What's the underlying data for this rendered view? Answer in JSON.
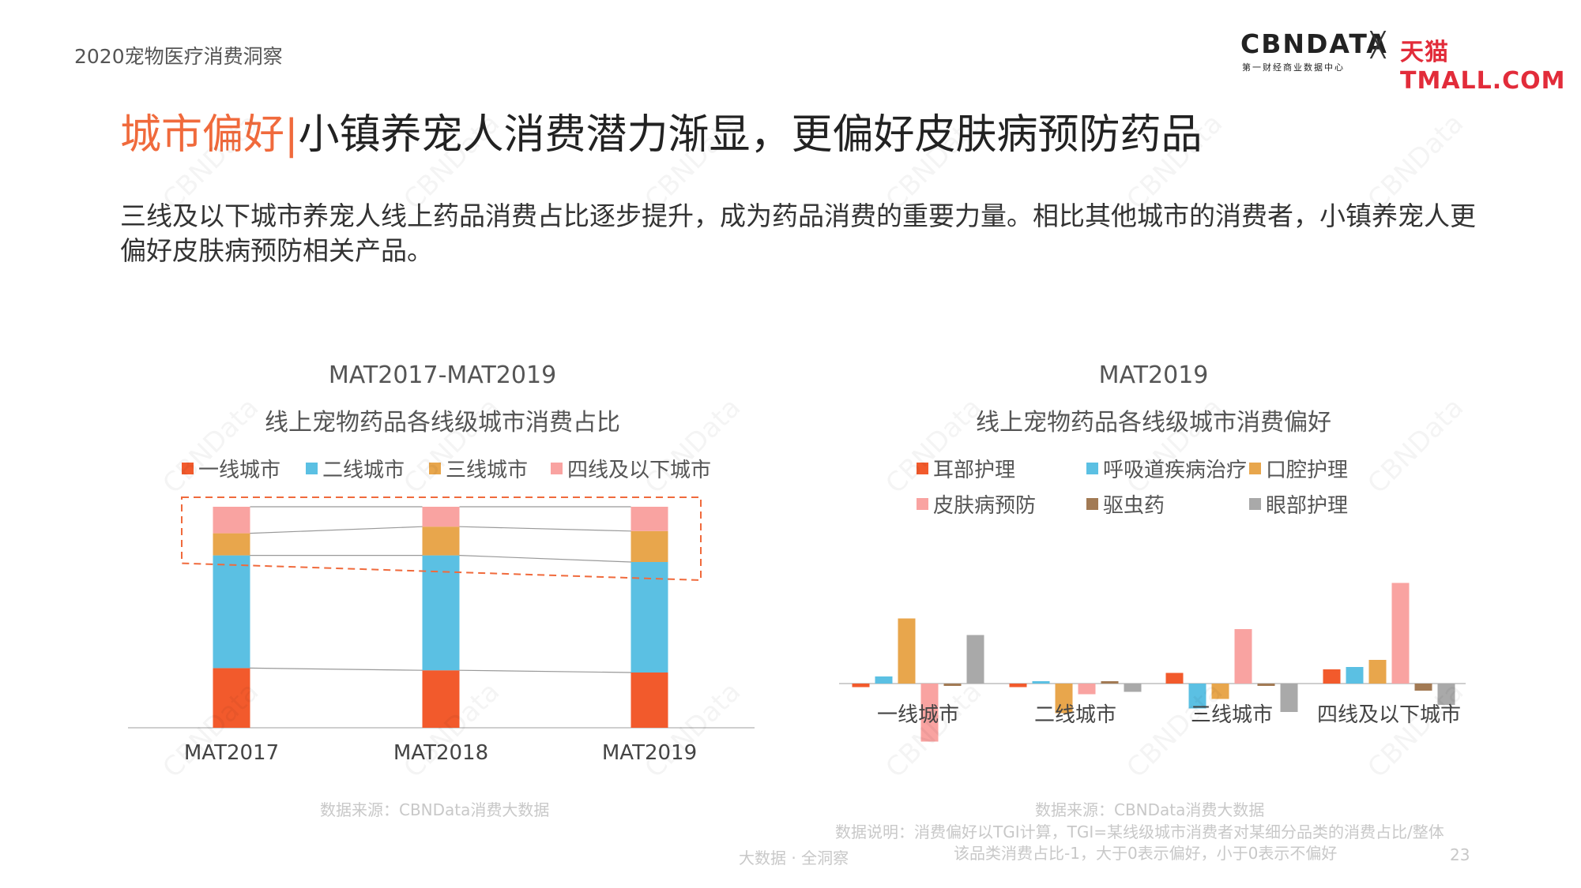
{
  "header": {
    "report_name": "2020宠物医疗消费洞察",
    "brand": {
      "cbn_logo": "CBNDATA",
      "cbn_sub": "第一财经商业数据中心",
      "times": "╳",
      "tmall_logo": "天猫TMALL.COM"
    }
  },
  "headline": {
    "highlight": "城市偏好",
    "separator": "|",
    "rest": "小镇养宠人消费潜力渐显，更偏好皮肤病预防药品"
  },
  "summary": "三线及以下城市养宠人线上药品消费占比逐步提升，成为药品消费的重要力量。相比其他城市的消费者，小镇养宠人更偏好皮肤病预防相关产品。",
  "watermark_text": "CBNData",
  "colors": {
    "tier1": "#f25a2c",
    "tier2": "#5bc0e3",
    "tier3": "#e8a64c",
    "tier4": "#f9a3a1",
    "ear": "#f25a2c",
    "respiratory": "#5bc0e3",
    "oral": "#e8a64c",
    "skin": "#f9a3a1",
    "deworm": "#a27a54",
    "eye": "#a9a9a9",
    "highlight_box": "#f06a3c"
  },
  "chart_data": [
    {
      "type": "bar",
      "stacked": true,
      "title": "MAT2017-MAT2019",
      "subtitle": "线上宠物药品各线级城市消费占比",
      "categories": [
        "MAT2017",
        "MAT2018",
        "MAT2019"
      ],
      "series": [
        {
          "name": "一线城市",
          "color_key": "tier1",
          "values": [
            27,
            26,
            25
          ]
        },
        {
          "name": "二线城市",
          "color_key": "tier2",
          "values": [
            51,
            52,
            50
          ]
        },
        {
          "name": "三线城市",
          "color_key": "tier3",
          "values": [
            10,
            13,
            14
          ]
        },
        {
          "name": "四线及以下城市",
          "color_key": "tier4",
          "values": [
            12,
            9,
            11
          ]
        }
      ],
      "ylim": [
        0,
        100
      ],
      "legend": "top",
      "grid": false,
      "annotation": "dashed highlight box around third- and fourth-tier segments",
      "source": "数据来源：CBNData消费大数据"
    },
    {
      "type": "bar",
      "grouped": true,
      "title": "MAT2019",
      "subtitle": "线上宠物药品各线级城市消费偏好",
      "categories": [
        "一线城市",
        "二线城市",
        "三线城市",
        "四线及以下城市"
      ],
      "series": [
        {
          "name": "耳部护理",
          "color_key": "ear",
          "values": [
            -0.03,
            -0.03,
            0.09,
            0.12
          ]
        },
        {
          "name": "呼吸道疾病治疗",
          "color_key": "respiratory",
          "values": [
            0.06,
            0.0,
            -0.21,
            0.14
          ]
        },
        {
          "name": "口腔护理",
          "color_key": "oral",
          "values": [
            0.55,
            -0.25,
            -0.13,
            0.2
          ]
        },
        {
          "name": "皮肤病预防",
          "color_key": "skin",
          "values": [
            -0.49,
            -0.09,
            0.46,
            0.85
          ]
        },
        {
          "name": "驱虫药",
          "color_key": "deworm",
          "values": [
            -0.01,
            0.01,
            -0.02,
            -0.06
          ]
        },
        {
          "name": "眼部护理",
          "color_key": "eye",
          "values": [
            0.41,
            -0.07,
            -0.24,
            -0.18
          ]
        }
      ],
      "ylim": [
        -0.6,
        1.0
      ],
      "legend": "top",
      "grid": false,
      "source": "数据来源：CBNData消费大数据",
      "note_line1": "数据说明：消费偏好以TGI计算，TGI=某线级城市消费者对某细分品类的消费占比/整体",
      "note_line2": "该品类消费占比-1，大于0表示偏好，小于0表示不偏好"
    }
  ],
  "footer": {
    "tagline": "大数据 · 全洞察",
    "page_number": "23"
  }
}
